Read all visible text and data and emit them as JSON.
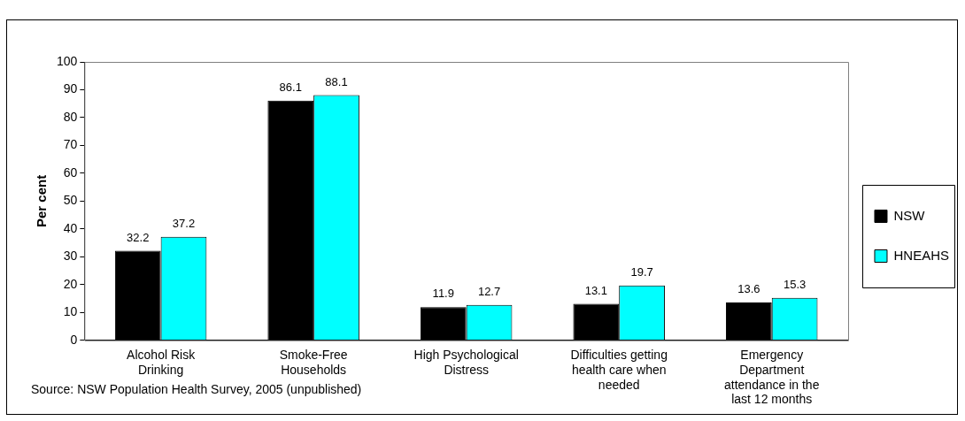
{
  "chart_data": {
    "type": "bar",
    "ylabel": "Per cent",
    "categories": [
      "Alcohol Risk Drinking",
      "Smoke-Free Households",
      "High Psychological Distress",
      "Difficulties getting health care when needed",
      "Emergency Department attendance in the last 12 months"
    ],
    "series": [
      {
        "name": "NSW",
        "color": "#000000",
        "values": [
          32.2,
          86.1,
          11.9,
          13.1,
          13.6
        ]
      },
      {
        "name": "HNEAHS",
        "color": "#00ffff",
        "values": [
          37.2,
          88.1,
          12.7,
          19.7,
          15.3
        ]
      }
    ],
    "ylim": [
      0,
      100
    ],
    "yticks": [
      0,
      10,
      20,
      30,
      40,
      50,
      60,
      70,
      80,
      90,
      100
    ],
    "grid": false,
    "legend": "right",
    "data_labels": true,
    "annotations": [
      "Source: NSW Population Health Survey, 2005 (unpublished)"
    ]
  }
}
